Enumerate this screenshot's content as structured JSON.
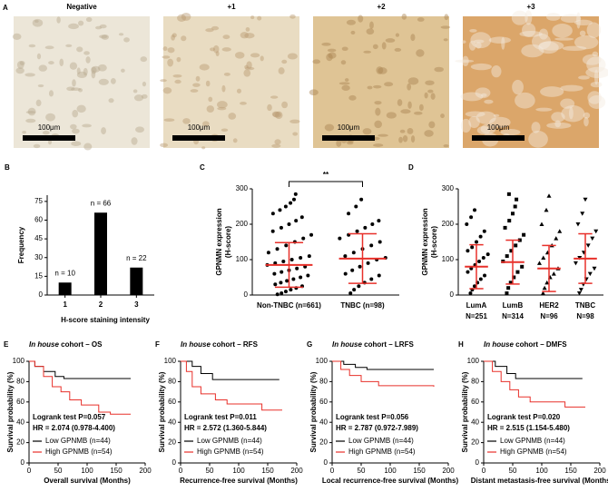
{
  "panel_a": {
    "label": "A",
    "images": [
      {
        "title": "Negative",
        "scale_bar": "100μm"
      },
      {
        "title": "+1",
        "scale_bar": "100μm"
      },
      {
        "title": "+2",
        "scale_bar": "100μm"
      },
      {
        "title": "+3",
        "scale_bar": "100μm"
      }
    ]
  },
  "chart_data": [
    {
      "type": "bar",
      "panel": "B",
      "categories": [
        "1",
        "2",
        "3"
      ],
      "values": [
        10,
        66,
        22
      ],
      "value_labels": [
        "n = 10",
        "n = 66",
        "n = 22"
      ],
      "color": "#000000",
      "ylim": [
        0,
        80
      ],
      "yticks": [
        0,
        15,
        30,
        45,
        60,
        75
      ],
      "ylabel": "Frequency",
      "xlabel": "H-score staining intensity"
    },
    {
      "type": "dot",
      "panel": "C",
      "ylabel": [
        "GPNMN expression",
        "(H-score)"
      ],
      "annotation": "**",
      "ylim": [
        0,
        300
      ],
      "yticks": [
        0,
        100,
        200,
        300
      ],
      "groups": [
        {
          "name": "Non-TNBC (n=661)",
          "marker": "circle",
          "mean": 85,
          "sd": 63,
          "values": [
            2,
            5,
            10,
            15,
            20,
            25,
            30,
            35,
            40,
            45,
            50,
            55,
            60,
            65,
            70,
            75,
            80,
            85,
            90,
            95,
            100,
            105,
            110,
            120,
            130,
            140,
            150,
            160,
            170,
            180,
            190,
            200,
            210,
            220,
            230,
            240,
            250,
            260,
            270,
            285
          ]
        },
        {
          "name": "TNBC (n=98)",
          "marker": "circle",
          "mean": 103,
          "sd": 70,
          "values": [
            5,
            15,
            25,
            35,
            45,
            55,
            60,
            70,
            80,
            90,
            100,
            105,
            110,
            120,
            130,
            140,
            150,
            160,
            170,
            180,
            190,
            200,
            210,
            230,
            250,
            270
          ]
        }
      ]
    },
    {
      "type": "dot",
      "panel": "D",
      "ylabel": [
        "GPNMN expression",
        "(H-score)"
      ],
      "ylim": [
        0,
        300
      ],
      "yticks": [
        0,
        100,
        200,
        300
      ],
      "groups": [
        {
          "name": "LumA",
          "n_label": "N=251",
          "marker": "circle",
          "mean": 80,
          "sd": 62,
          "values": [
            5,
            15,
            25,
            35,
            45,
            55,
            65,
            75,
            85,
            95,
            105,
            115,
            125,
            135,
            150,
            165,
            180,
            200,
            220,
            240
          ]
        },
        {
          "name": "LumB",
          "n_label": "N=314",
          "marker": "square",
          "mean": 93,
          "sd": 62,
          "values": [
            5,
            20,
            35,
            50,
            65,
            80,
            95,
            110,
            125,
            140,
            155,
            170,
            190,
            210,
            230,
            250,
            270,
            285
          ]
        },
        {
          "name": "HER2",
          "n_label": "N=96",
          "marker": "triangle",
          "mean": 75,
          "sd": 65,
          "values": [
            5,
            20,
            35,
            50,
            60,
            75,
            90,
            105,
            120,
            140,
            160,
            180,
            200,
            240,
            280
          ]
        },
        {
          "name": "TNBC",
          "n_label": "N=98",
          "marker": "triangle-down",
          "mean": 103,
          "sd": 70,
          "values": [
            5,
            15,
            30,
            45,
            60,
            75,
            90,
            105,
            120,
            140,
            160,
            180,
            200,
            230,
            270
          ]
        }
      ]
    },
    {
      "type": "km",
      "panel": "E",
      "title_italic": "In house",
      "title": "cohort – OS",
      "stat_lines": [
        "Logrank test P=0.057",
        "HR = 2.074 (0.978-4.400)"
      ],
      "ylabel": "Survival probability (%)",
      "xlabel": "Overall survival (Months)",
      "xlim": [
        0,
        200
      ],
      "xticks": [
        0,
        50,
        100,
        150,
        200
      ],
      "ylim": [
        0,
        100
      ],
      "yticks": [
        0,
        20,
        40,
        60,
        80,
        100
      ],
      "series": [
        {
          "name": "Low GPNMB (n=44)",
          "color": "#000000",
          "x": [
            0,
            10,
            25,
            45,
            60,
            175
          ],
          "values": [
            100,
            95,
            90,
            85,
            83,
            83
          ]
        },
        {
          "name": "High GPNMB (n=54)",
          "color": "#e8302a",
          "x": [
            0,
            10,
            25,
            40,
            55,
            70,
            90,
            120,
            140,
            175
          ],
          "values": [
            100,
            95,
            85,
            75,
            70,
            62,
            57,
            50,
            48,
            48
          ]
        }
      ]
    },
    {
      "type": "km",
      "panel": "F",
      "title_italic": "In house",
      "title": "cohort – RFS",
      "stat_lines": [
        "Logrank test P=0.011",
        "HR = 2.572 (1.360-5.844)"
      ],
      "ylabel": "Survival probability (%)",
      "xlabel": "Recurrence-free survival (Months)",
      "xlim": [
        0,
        200
      ],
      "xticks": [
        0,
        50,
        100,
        150,
        200
      ],
      "ylim": [
        0,
        100
      ],
      "yticks": [
        0,
        20,
        40,
        60,
        80,
        100
      ],
      "series": [
        {
          "name": "Low GPNMB (n=44)",
          "color": "#000000",
          "x": [
            0,
            20,
            35,
            55,
            170
          ],
          "values": [
            100,
            95,
            88,
            82,
            82
          ]
        },
        {
          "name": "High GPNMB (n=54)",
          "color": "#e8302a",
          "x": [
            0,
            10,
            20,
            35,
            60,
            80,
            140,
            175
          ],
          "values": [
            100,
            90,
            75,
            68,
            62,
            58,
            52,
            52
          ]
        }
      ]
    },
    {
      "type": "km",
      "panel": "G",
      "title_italic": "In house",
      "title": "cohort – LRFS",
      "stat_lines": [
        "Logrank test P=0.056",
        "HR = 2.787 (0.972-7.989)"
      ],
      "ylabel": "Survival probability (%)",
      "xlabel": "Local recurrence-free survival (Months)",
      "xlim": [
        0,
        200
      ],
      "xticks": [
        0,
        50,
        100,
        150,
        200
      ],
      "ylim": [
        0,
        100
      ],
      "yticks": [
        0,
        20,
        40,
        60,
        80,
        100
      ],
      "series": [
        {
          "name": "Low GPNMB (n=44)",
          "color": "#000000",
          "x": [
            0,
            20,
            40,
            60,
            175
          ],
          "values": [
            100,
            97,
            94,
            92,
            92
          ]
        },
        {
          "name": "High GPNMB (n=54)",
          "color": "#e8302a",
          "x": [
            0,
            15,
            30,
            50,
            80,
            175
          ],
          "values": [
            100,
            92,
            86,
            80,
            76,
            75
          ]
        }
      ]
    },
    {
      "type": "km",
      "panel": "H",
      "title_italic": "In house",
      "title": "cohort – DMFS",
      "stat_lines": [
        "Logrank test P=0.020",
        "HR = 2.515 (1.154-5.480)"
      ],
      "ylabel": "Survival probability (%)",
      "xlabel": "Distant metastasis-free survival (Months)",
      "xlim": [
        0,
        200
      ],
      "xticks": [
        0,
        50,
        100,
        150,
        200
      ],
      "ylim": [
        0,
        100
      ],
      "yticks": [
        0,
        20,
        40,
        60,
        80,
        100
      ],
      "series": [
        {
          "name": "Low GPNMB (n=44)",
          "color": "#000000",
          "x": [
            0,
            20,
            40,
            55,
            170
          ],
          "values": [
            100,
            95,
            88,
            83,
            83
          ]
        },
        {
          "name": "High GPNMB (n=54)",
          "color": "#e8302a",
          "x": [
            0,
            15,
            30,
            45,
            60,
            80,
            140,
            175
          ],
          "values": [
            100,
            90,
            80,
            72,
            65,
            60,
            55,
            55
          ]
        }
      ]
    }
  ]
}
